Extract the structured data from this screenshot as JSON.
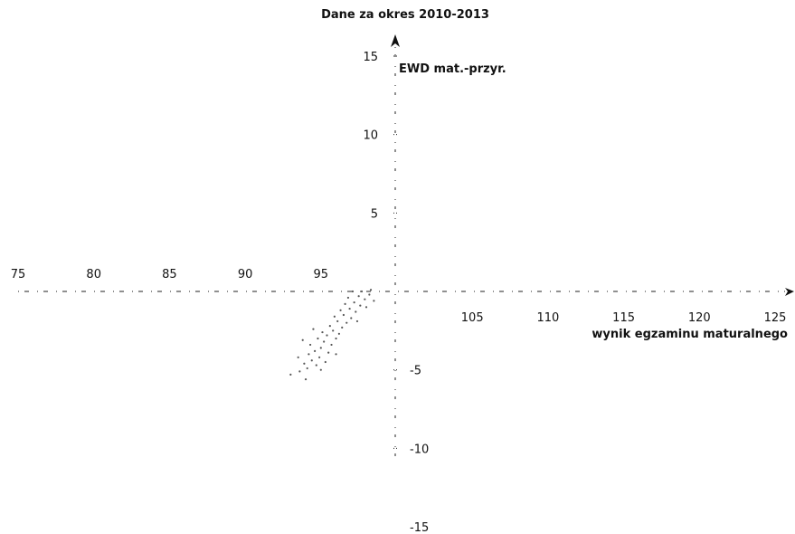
{
  "chart_data": {
    "type": "scatter",
    "title": "Dane za okres 2010-2013",
    "xlabel": "wynik egzaminu maturalnego",
    "ylabel": "EWD mat.-przyr.",
    "xlim": [
      75,
      125
    ],
    "ylim": [
      -15,
      15
    ],
    "x_ticks": [
      "75",
      "80",
      "85",
      "90",
      "95",
      "105",
      "110",
      "115",
      "120",
      "125"
    ],
    "y_ticks": [
      "15",
      "10",
      "5",
      "-5",
      "-10",
      "-15"
    ],
    "grid": false,
    "legend": "none",
    "marker_color": "#555555",
    "axis_color": "#222222",
    "series": [
      {
        "points": [
          [
            93.0,
            -5.3
          ],
          [
            93.6,
            -5.1
          ],
          [
            94.1,
            -4.9
          ],
          [
            93.9,
            -4.6
          ],
          [
            94.4,
            -4.4
          ],
          [
            94.7,
            -4.7
          ],
          [
            93.5,
            -4.2
          ],
          [
            94.2,
            -4.0
          ],
          [
            94.9,
            -4.2
          ],
          [
            95.3,
            -4.5
          ],
          [
            94.6,
            -3.8
          ],
          [
            95.0,
            -3.6
          ],
          [
            94.3,
            -3.4
          ],
          [
            95.5,
            -3.9
          ],
          [
            95.2,
            -3.2
          ],
          [
            94.8,
            -3.0
          ],
          [
            95.7,
            -3.4
          ],
          [
            95.4,
            -2.8
          ],
          [
            96.0,
            -3.0
          ],
          [
            95.1,
            -2.6
          ],
          [
            95.8,
            -2.5
          ],
          [
            96.2,
            -2.7
          ],
          [
            95.6,
            -2.2
          ],
          [
            96.4,
            -2.3
          ],
          [
            96.1,
            -1.9
          ],
          [
            96.7,
            -2.0
          ],
          [
            95.9,
            -1.6
          ],
          [
            96.5,
            -1.5
          ],
          [
            97.0,
            -1.7
          ],
          [
            96.3,
            -1.2
          ],
          [
            96.9,
            -1.1
          ],
          [
            97.3,
            -1.3
          ],
          [
            96.6,
            -0.8
          ],
          [
            97.2,
            -0.7
          ],
          [
            97.6,
            -0.9
          ],
          [
            96.8,
            -0.4
          ],
          [
            97.5,
            -0.3
          ],
          [
            97.9,
            -0.5
          ],
          [
            97.1,
            0.0
          ],
          [
            97.7,
            0.0
          ],
          [
            98.2,
            -0.2
          ],
          [
            98.5,
            -0.6
          ],
          [
            98.0,
            -1.0
          ],
          [
            97.4,
            -1.9
          ],
          [
            94.5,
            -2.4
          ],
          [
            93.8,
            -3.1
          ],
          [
            95.0,
            -5.0
          ],
          [
            94.0,
            -5.6
          ],
          [
            96.0,
            -4.0
          ],
          [
            98.3,
            0.1
          ]
        ]
      }
    ]
  }
}
